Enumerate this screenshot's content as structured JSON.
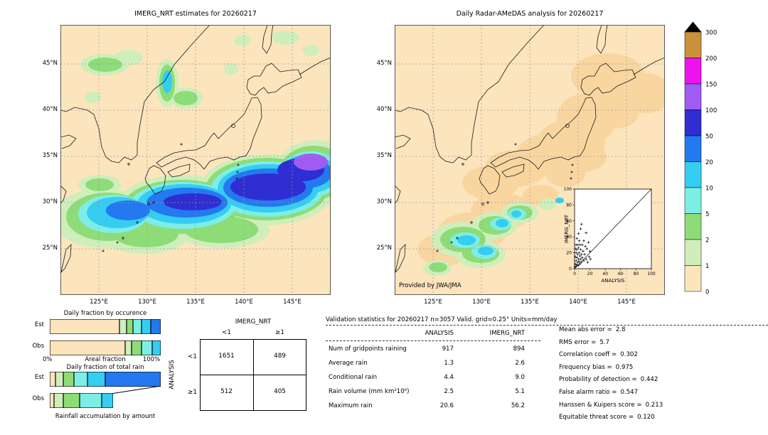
{
  "chart_data": {
    "left_map": {
      "type": "heatmap",
      "title": "IMERG_NRT estimates for 20260217",
      "lat_ticks": [
        "45°N",
        "40°N",
        "35°N",
        "30°N",
        "25°N"
      ],
      "lon_ticks": [
        "125°E",
        "130°E",
        "135°E",
        "140°E",
        "145°E"
      ],
      "units": "mm/day",
      "description": "IMERG_NRT gridded precipitation over Japan; rain band 25-35N with 20-100 mm/day core south of Honshu and >100 mm/day patch near 34N,145E; light rain patches near 44-47N"
    },
    "right_map": {
      "type": "heatmap",
      "title": "Daily Radar-AMeDAS analysis for 20260217",
      "lat_ticks": [
        "45°N",
        "40°N",
        "35°N",
        "30°N",
        "25°N"
      ],
      "lon_ticks": [
        "125°E",
        "130°E",
        "135°E",
        "140°E",
        "145°E"
      ],
      "credit": "Provided by JWA/JMA",
      "units": "mm/day",
      "description": "Radar-AMeDAS analysed precipitation; mostly <1 mm/day along the Japan archipelago with 1-20 mm/day patches southwest and south of Kyushu"
    },
    "colorbar": {
      "levels": [
        "300",
        "200",
        "150",
        "100",
        "50",
        "20",
        "10",
        "5",
        "2",
        "1",
        "0"
      ],
      "segment_colors_top_to_bottom": [
        "#c9913a",
        "#ee12ee",
        "#a05cf0",
        "#2e2ed2",
        "#2478f0",
        "#35cdf2",
        "#7deee6",
        "#8edc78",
        "#cfeebb",
        "#fce4bd"
      ],
      "overflow_color": "#000000"
    },
    "contingency": {
      "type": "table",
      "header": "IMERG_NRT",
      "side": "ANALYSIS",
      "col_labels": [
        "<1",
        "≥1"
      ],
      "row_labels": [
        "<1",
        "≥1"
      ],
      "values": [
        [
          "1651",
          "489"
        ],
        [
          "512",
          "405"
        ]
      ]
    },
    "occurrence_bars": {
      "type": "bar",
      "title": "Daily fraction by occurence",
      "axis_min": "0%",
      "axis_label": "Areal fraction",
      "axis_max": "100%",
      "series": [
        {
          "name": "Est",
          "segments": [
            {
              "color": "#fce4bd",
              "pct": 63
            },
            {
              "color": "#cfeebb",
              "pct": 6
            },
            {
              "color": "#8edc78",
              "pct": 6
            },
            {
              "color": "#7deee6",
              "pct": 8
            },
            {
              "color": "#35cdf2",
              "pct": 8
            },
            {
              "color": "#2478f0",
              "pct": 9
            }
          ]
        },
        {
          "name": "Obs",
          "segments": [
            {
              "color": "#fce4bd",
              "pct": 68
            },
            {
              "color": "#cfeebb",
              "pct": 6
            },
            {
              "color": "#8edc78",
              "pct": 9
            },
            {
              "color": "#7deee6",
              "pct": 9
            },
            {
              "color": "#35cdf2",
              "pct": 8
            }
          ]
        }
      ]
    },
    "total_rain_bars": {
      "type": "bar",
      "title": "Daily fraction of total rain",
      "footer": "Rainfall accumulation by amount",
      "series": [
        {
          "name": "Est",
          "segments": [
            {
              "color": "#fce4bd",
              "pct": 5
            },
            {
              "color": "#cfeebb",
              "pct": 7
            },
            {
              "color": "#8edc78",
              "pct": 10
            },
            {
              "color": "#7deee6",
              "pct": 12
            },
            {
              "color": "#35cdf2",
              "pct": 16
            },
            {
              "color": "#2478f0",
              "pct": 50
            }
          ]
        },
        {
          "name": "Obs",
          "segments": [
            {
              "color": "#fce4bd",
              "pct": 4
            },
            {
              "color": "#cfeebb",
              "pct": 8
            },
            {
              "color": "#8edc78",
              "pct": 15
            },
            {
              "color": "#7deee6",
              "pct": 20
            },
            {
              "color": "#35cdf2",
              "pct": 10
            }
          ]
        }
      ]
    },
    "inset_scatter": {
      "type": "scatter",
      "xlabel": "ANALYSIS",
      "ylabel": "IMERG_NRT",
      "xlim": [
        0,
        100
      ],
      "ylim": [
        0,
        100
      ],
      "ticks": [
        "0",
        "20",
        "40",
        "60",
        "80",
        "100"
      ],
      "points": [
        [
          0.5,
          2
        ],
        [
          1,
          6
        ],
        [
          1,
          15
        ],
        [
          1.5,
          25
        ],
        [
          2,
          3
        ],
        [
          2,
          10
        ],
        [
          2,
          20
        ],
        [
          2,
          30
        ],
        [
          3,
          5
        ],
        [
          3,
          14
        ],
        [
          3,
          24
        ],
        [
          3,
          38
        ],
        [
          4,
          8
        ],
        [
          4,
          18
        ],
        [
          4,
          30
        ],
        [
          5,
          4
        ],
        [
          5,
          12
        ],
        [
          5,
          26
        ],
        [
          5,
          44
        ],
        [
          6,
          9
        ],
        [
          6,
          20
        ],
        [
          6,
          35
        ],
        [
          7,
          6
        ],
        [
          7,
          16
        ],
        [
          7,
          30
        ],
        [
          8,
          12
        ],
        [
          8,
          24
        ],
        [
          8,
          50
        ],
        [
          9,
          8
        ],
        [
          9,
          18
        ],
        [
          9,
          56
        ],
        [
          10,
          14
        ],
        [
          10,
          30
        ],
        [
          11,
          22
        ],
        [
          12,
          10
        ],
        [
          12,
          35
        ],
        [
          13,
          18
        ],
        [
          14,
          28
        ],
        [
          15,
          12
        ],
        [
          15,
          45
        ],
        [
          16,
          25
        ],
        [
          17,
          8
        ],
        [
          18,
          33
        ],
        [
          19,
          15
        ],
        [
          20,
          22
        ],
        [
          20.6,
          12
        ]
      ]
    },
    "validation": {
      "type": "table",
      "title": "Validation statistics for 20260217  n=3057 Valid. grid=0.25° Units=mm/day",
      "col_headers": [
        "ANALYSIS",
        "IMERG_NRT"
      ],
      "rows": [
        {
          "label": "Num of gridpoints raining",
          "analysis": "917",
          "imerg": "894"
        },
        {
          "label": "Average rain",
          "analysis": "1.3",
          "imerg": "2.6"
        },
        {
          "label": "Conditional rain",
          "analysis": "4.4",
          "imerg": "9.0"
        },
        {
          "label": "Rain volume (mm km²10⁶)",
          "analysis": "2.5",
          "imerg": "5.1"
        },
        {
          "label": "Maximum rain",
          "analysis": "20.6",
          "imerg": "56.2"
        }
      ]
    },
    "scores": [
      {
        "label": "Mean abs error =",
        "value": "2.8"
      },
      {
        "label": "RMS error =",
        "value": "5.7"
      },
      {
        "label": "Correlation coeff =",
        "value": "0.302"
      },
      {
        "label": "Frequency bias =",
        "value": "0.975"
      },
      {
        "label": "Probability of detection =",
        "value": "0.442"
      },
      {
        "label": "False alarm ratio =",
        "value": "0.547"
      },
      {
        "label": "Hanssen & Kuipers score =",
        "value": "0.213"
      },
      {
        "label": "Equitable threat score =",
        "value": "0.120"
      }
    ]
  }
}
